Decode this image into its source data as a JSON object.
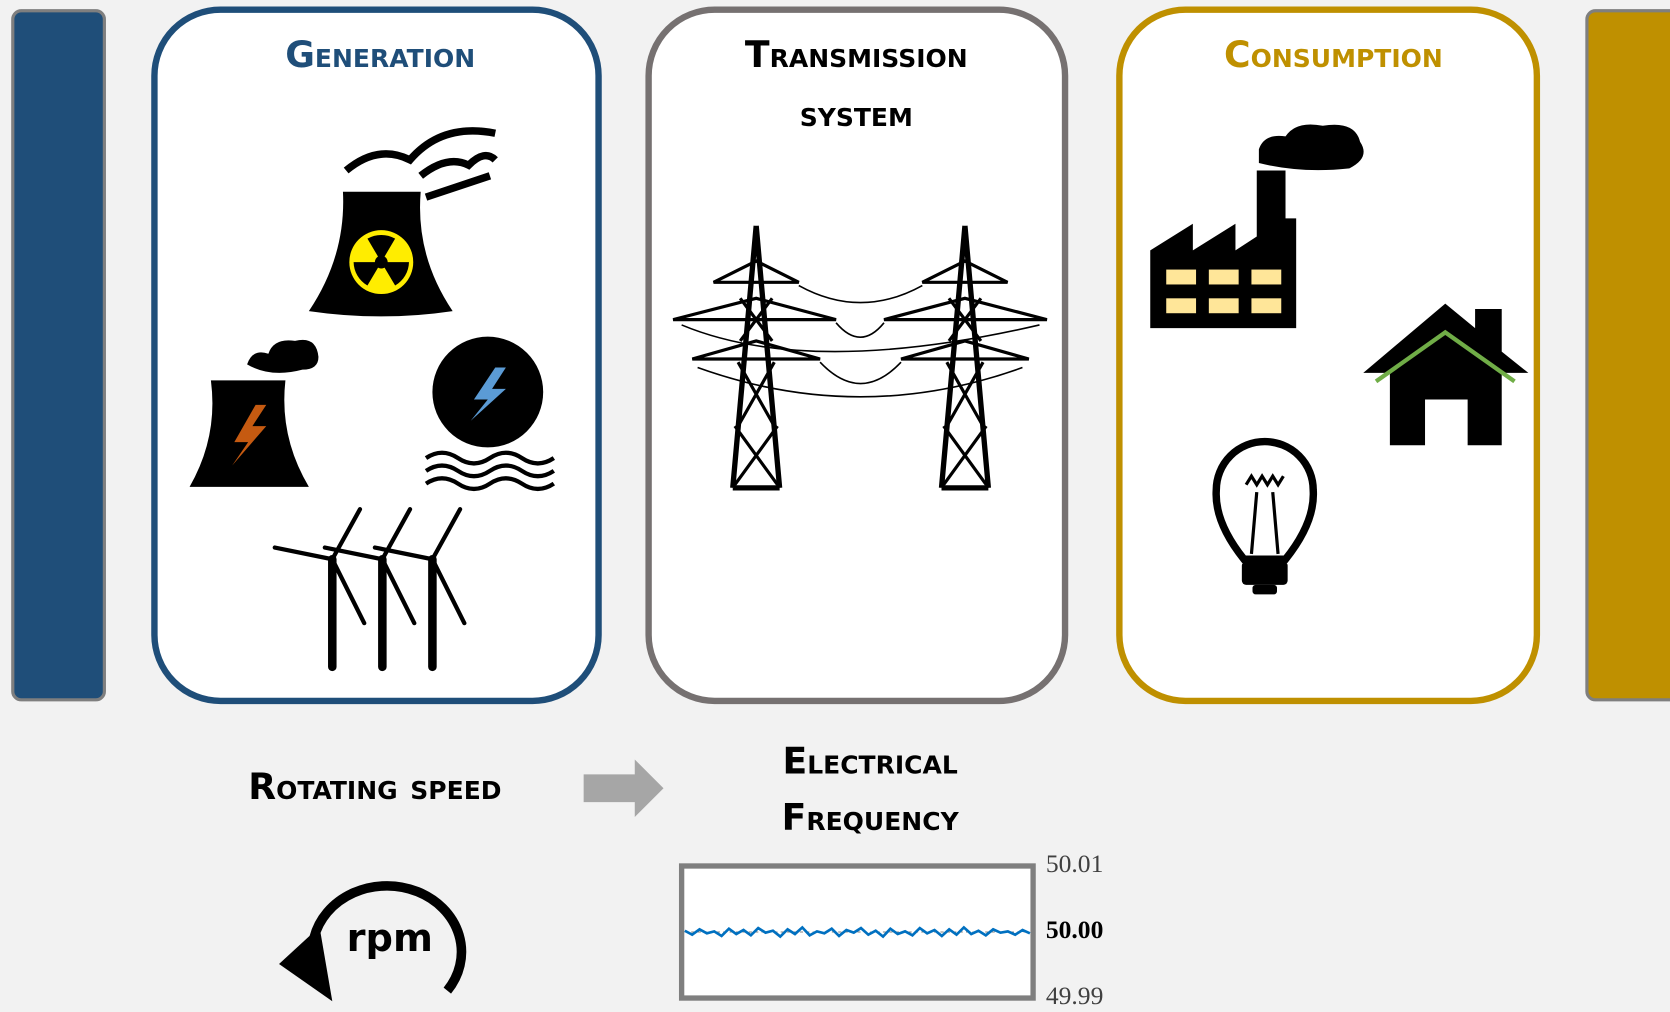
{
  "panels": {
    "generation": {
      "title": "Generation"
    },
    "transmission": {
      "title_lines": [
        "Transmission",
        "system"
      ]
    },
    "consumption": {
      "title": "Consumption"
    }
  },
  "rotating_speed": {
    "label": "Rotating speed",
    "unit": "rpm"
  },
  "electrical_frequency": {
    "label_lines": [
      "Electrical",
      "Frequency"
    ]
  },
  "frequency_plot": {
    "ylim": [
      49.99,
      50.01
    ],
    "yticks": [
      50.01,
      {
        "value": 50,
        "label": "50.00"
      },
      49.99
    ],
    "values": [
      50.0002,
      49.9996,
      50.0004,
      49.9998,
      50.0001,
      49.9994,
      50.0005,
      49.9997,
      50.0003,
      49.9995,
      50.0006,
      49.9999,
      50.0002,
      49.9993,
      50.0004,
      49.9997,
      50.0007,
      49.9995,
      50.0001,
      49.9998,
      50.0005,
      49.9994,
      50.0003,
      49.9999,
      50.0006,
      49.9996,
      50.0002,
      49.9993,
      50.0005,
      49.9997,
      50.0001,
      49.9995,
      50.0006,
      49.9998,
      50.0003,
      49.9994,
      50.0004,
      49.9996,
      50.0007,
      49.9997,
      50.0002,
      49.9995,
      50.0004,
      49.9999,
      50.0001,
      49.9996,
      50.0003,
      49.9998
    ]
  }
}
